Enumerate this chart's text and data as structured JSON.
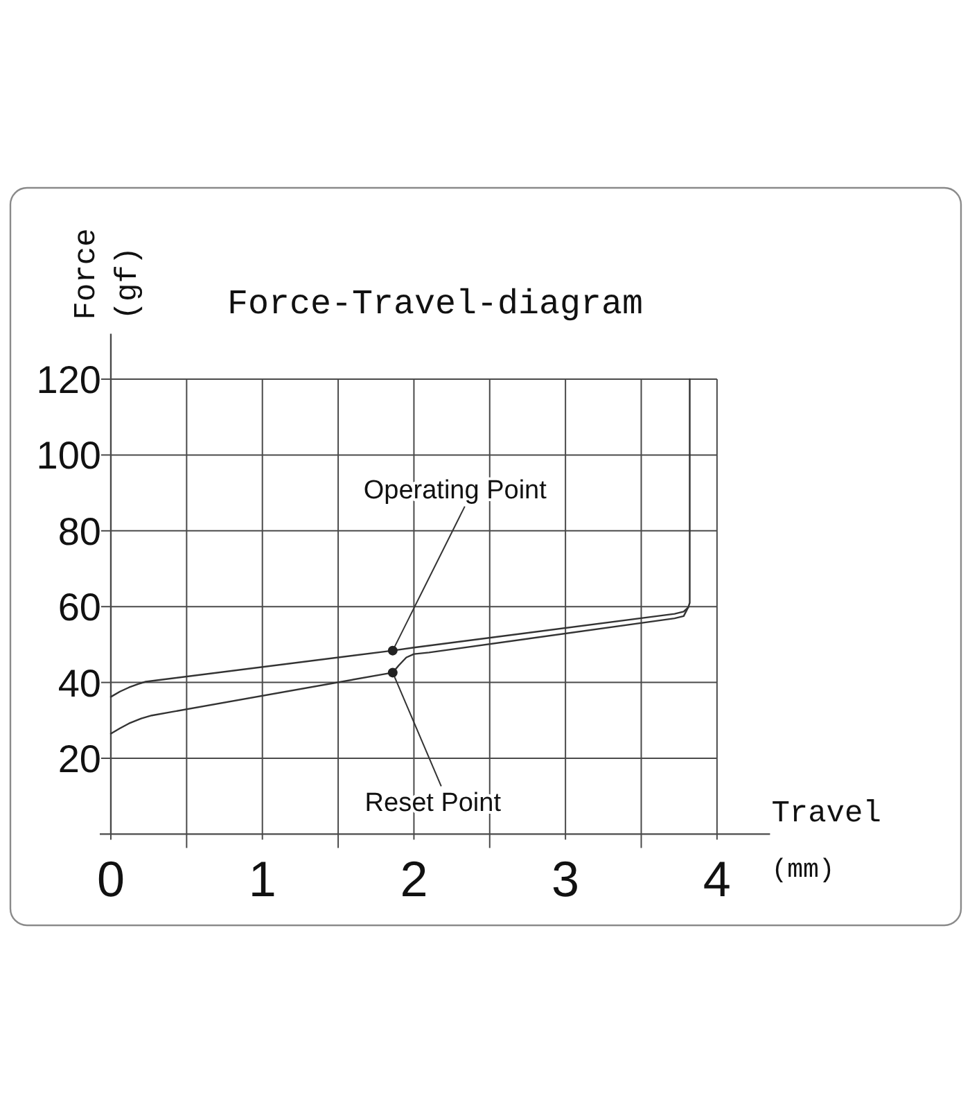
{
  "chart_data": {
    "type": "line",
    "title": "Force-Travel-diagram",
    "xlabel": "Travel\n(mm)",
    "ylabel": "Force\n(gf)",
    "xlim": [
      0,
      4.35
    ],
    "ylim": [
      0,
      132
    ],
    "xticks": [
      0,
      {
        "value": 0.5,
        "label": null
      },
      1,
      {
        "value": 1.5,
        "label": null
      },
      2,
      {
        "value": 2.5,
        "label": null
      },
      3,
      {
        "value": 3.5,
        "label": null
      },
      4
    ],
    "yticks": [
      20,
      40,
      60,
      80,
      100,
      120
    ],
    "grid": true,
    "series": [
      {
        "color": "#333333",
        "x": [
          0,
          0.06,
          0.12,
          0.18,
          0.23,
          1.86,
          2.0,
          3.72,
          3.78,
          3.81,
          3.82,
          3.82
        ],
        "values": [
          36.2,
          37.6,
          38.7,
          39.6,
          40.2,
          48.4,
          49.2,
          58.1,
          58.7,
          59.8,
          61,
          120
        ]
      },
      {
        "color": "#333333",
        "x": [
          0,
          0.06,
          0.12,
          0.2,
          0.27,
          1.86,
          1.9,
          1.95,
          2.0,
          2.1,
          3.72,
          3.78,
          3.81
        ],
        "values": [
          26.5,
          27.9,
          29.2,
          30.5,
          31.3,
          42.6,
          44.5,
          46.6,
          47.5,
          47.9,
          56.9,
          57.5,
          59.8
        ]
      }
    ],
    "annotations": [
      {
        "text": "Operating Point",
        "x": 1.86,
        "y": 48.4
      },
      {
        "text": "Reset Point",
        "x": 1.86,
        "y": 42.6
      }
    ]
  }
}
